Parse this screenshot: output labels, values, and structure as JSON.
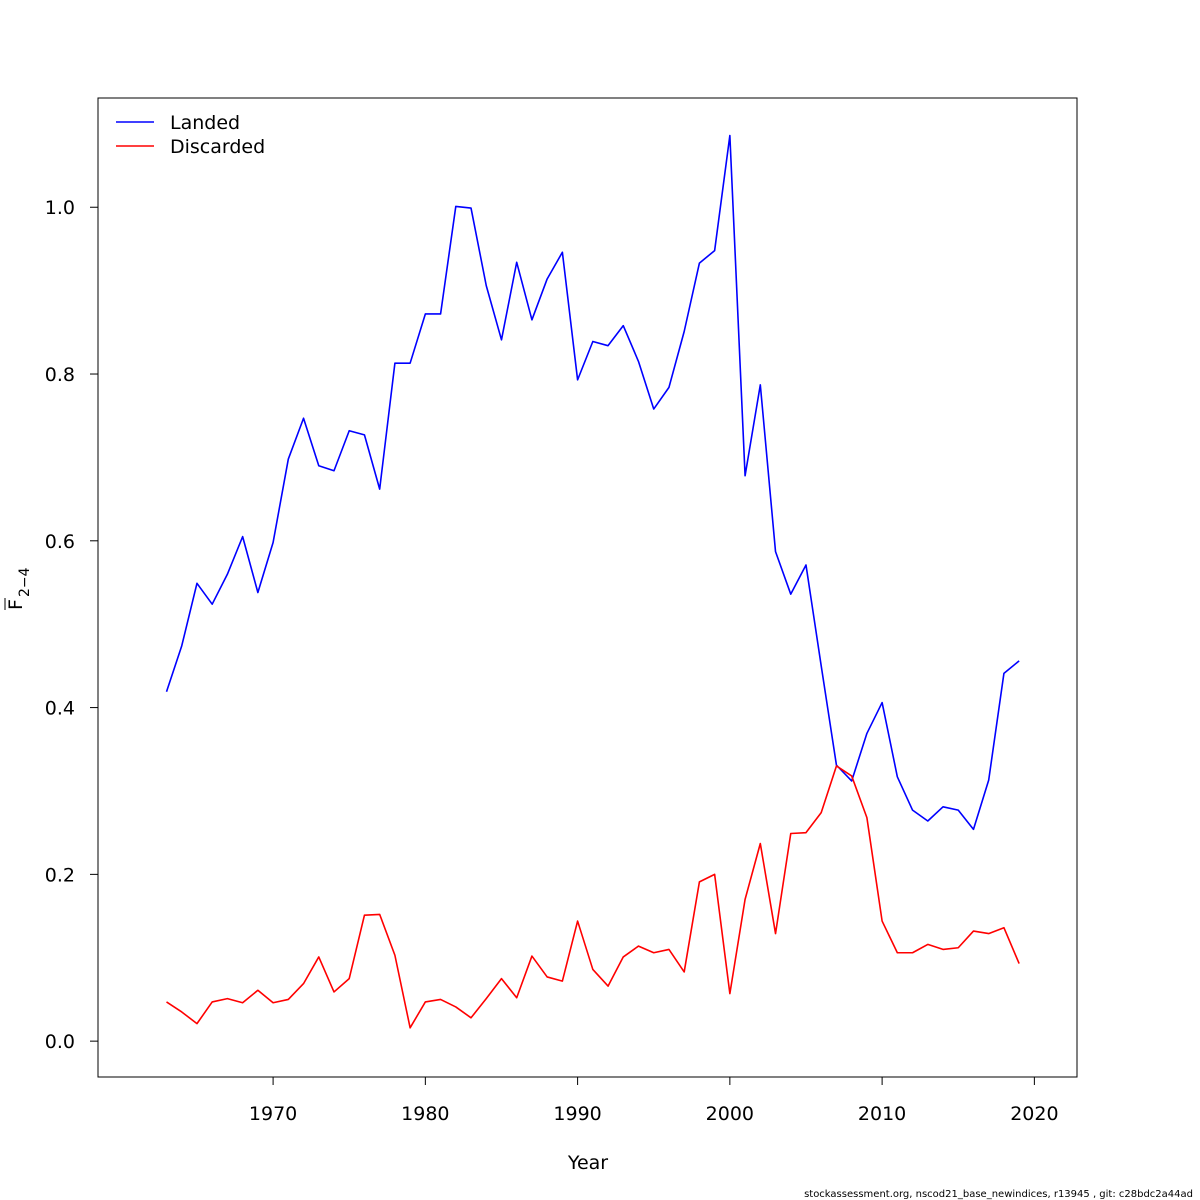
{
  "chart_data": {
    "type": "line",
    "xlabel": "Year",
    "ylabel_main": "F",
    "ylabel_sub": "2−4",
    "xlim": [
      1958.5,
      2022.8
    ],
    "ylim": [
      -0.043,
      1.131
    ],
    "xticks": [
      1970,
      1980,
      1990,
      2000,
      2010,
      2020
    ],
    "xtick_labels": [
      "1970",
      "1980",
      "1990",
      "2000",
      "2010",
      "2020"
    ],
    "yticks": [
      0.0,
      0.2,
      0.4,
      0.6,
      0.8,
      1.0
    ],
    "ytick_labels": [
      "0.0",
      "0.2",
      "0.4",
      "0.6",
      "0.8",
      "1.0"
    ],
    "legend_position": "top-left",
    "grid": false,
    "x": [
      1963,
      1964,
      1965,
      1966,
      1967,
      1968,
      1969,
      1970,
      1971,
      1972,
      1973,
      1974,
      1975,
      1976,
      1977,
      1978,
      1979,
      1980,
      1981,
      1982,
      1983,
      1984,
      1985,
      1986,
      1987,
      1988,
      1989,
      1990,
      1991,
      1992,
      1993,
      1994,
      1995,
      1996,
      1997,
      1998,
      1999,
      2000,
      2001,
      2002,
      2003,
      2004,
      2005,
      2006,
      2007,
      2008,
      2009,
      2010,
      2011,
      2012,
      2013,
      2014,
      2015,
      2016,
      2017,
      2018,
      2019
    ],
    "series": [
      {
        "name": "Landed",
        "color": "#0000ff",
        "values": [
          0.419,
          0.474,
          0.549,
          0.524,
          0.56,
          0.605,
          0.538,
          0.598,
          0.698,
          0.747,
          0.69,
          0.684,
          0.732,
          0.727,
          0.662,
          0.813,
          0.813,
          0.872,
          0.872,
          1.001,
          0.999,
          0.906,
          0.841,
          0.934,
          0.865,
          0.914,
          0.946,
          0.793,
          0.839,
          0.834,
          0.858,
          0.815,
          0.758,
          0.784,
          0.851,
          0.933,
          0.948,
          1.086,
          0.678,
          0.787,
          0.587,
          0.536,
          0.571,
          0.45,
          0.331,
          0.312,
          0.369,
          0.406,
          0.317,
          0.277,
          0.264,
          0.281,
          0.277,
          0.254,
          0.313,
          0.441,
          0.456
        ]
      },
      {
        "name": "Discarded",
        "color": "#ff0000",
        "values": [
          0.047,
          0.035,
          0.021,
          0.047,
          0.051,
          0.046,
          0.061,
          0.046,
          0.05,
          0.069,
          0.101,
          0.059,
          0.075,
          0.151,
          0.152,
          0.103,
          0.016,
          0.047,
          0.05,
          0.041,
          0.028,
          0.051,
          0.075,
          0.052,
          0.102,
          0.077,
          0.072,
          0.144,
          0.086,
          0.066,
          0.101,
          0.114,
          0.106,
          0.11,
          0.083,
          0.191,
          0.2,
          0.057,
          0.17,
          0.237,
          0.129,
          0.249,
          0.25,
          0.274,
          0.33,
          0.318,
          0.268,
          0.144,
          0.106,
          0.106,
          0.116,
          0.11,
          0.112,
          0.132,
          0.129,
          0.136,
          0.093
        ]
      }
    ]
  },
  "footer": "stockassessment.org, nscod21_base_newindices, r13945 , git: c28bdc2a44ad"
}
